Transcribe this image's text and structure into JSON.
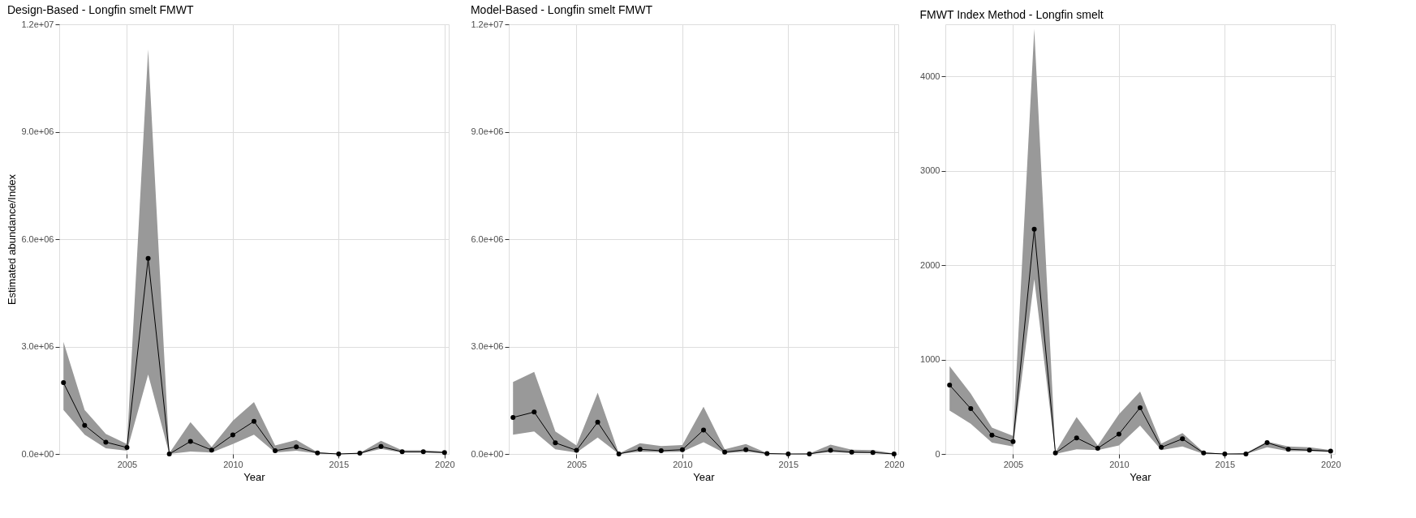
{
  "chart_data": [
    {
      "type": "line",
      "title": "Design-Based - Longfin smelt FMWT",
      "xlabel": "Year",
      "ylabel": "Estimated abundance/Index",
      "x": [
        2002,
        2003,
        2004,
        2005,
        2006,
        2007,
        2008,
        2009,
        2010,
        2011,
        2012,
        2013,
        2014,
        2015,
        2016,
        2017,
        2018,
        2019,
        2020
      ],
      "series": [
        {
          "color": "#000000",
          "values": [
            1990000,
            800000,
            330000,
            180000,
            5460000,
            0,
            350000,
            110000,
            530000,
            910000,
            90000,
            200000,
            30000,
            0,
            20000,
            210000,
            60000,
            60000,
            40000
          ],
          "lower": [
            1230000,
            540000,
            160000,
            90000,
            2220000,
            0,
            70000,
            40000,
            280000,
            540000,
            40000,
            90000,
            10000,
            0,
            0,
            140000,
            40000,
            40000,
            20000
          ],
          "upper": [
            3130000,
            1230000,
            560000,
            280000,
            11300000,
            20000,
            890000,
            200000,
            930000,
            1450000,
            240000,
            390000,
            50000,
            0,
            30000,
            370000,
            100000,
            100000,
            70000
          ]
        }
      ],
      "xlim": [
        2001.8,
        2020.2
      ],
      "xticks": [
        2005,
        2010,
        2015,
        2020
      ],
      "ylim": [
        0,
        12000000
      ],
      "yticks": [
        {
          "value": 0,
          "label": "0.0e+00"
        },
        {
          "value": 3000000,
          "label": "3.0e+06"
        },
        {
          "value": 6000000,
          "label": "6.0e+06"
        },
        {
          "value": 9000000,
          "label": "9.0e+06"
        },
        {
          "value": 12000000,
          "label": "1.2e+07"
        }
      ],
      "grid": true,
      "marker": "circle",
      "line_style": "solid"
    },
    {
      "type": "line",
      "title": "Model-Based - Longfin smelt FMWT",
      "xlabel": "Year",
      "x": [
        2002,
        2003,
        2004,
        2005,
        2006,
        2007,
        2008,
        2009,
        2010,
        2011,
        2012,
        2013,
        2014,
        2015,
        2016,
        2017,
        2018,
        2019,
        2020
      ],
      "series": [
        {
          "color": "#000000",
          "values": [
            1020000,
            1170000,
            310000,
            100000,
            890000,
            0,
            130000,
            90000,
            120000,
            670000,
            50000,
            120000,
            10000,
            0,
            0,
            100000,
            50000,
            40000,
            0
          ],
          "lower": [
            540000,
            630000,
            130000,
            40000,
            460000,
            0,
            60000,
            50000,
            60000,
            330000,
            20000,
            60000,
            0,
            0,
            0,
            50000,
            20000,
            20000,
            0
          ],
          "upper": [
            2010000,
            2290000,
            630000,
            240000,
            1710000,
            10000,
            300000,
            220000,
            250000,
            1320000,
            130000,
            280000,
            20000,
            0,
            10000,
            260000,
            120000,
            110000,
            10000
          ]
        }
      ],
      "xlim": [
        2001.8,
        2020.2
      ],
      "xticks": [
        2005,
        2010,
        2015,
        2020
      ],
      "ylim": [
        0,
        12000000
      ],
      "yticks": [
        {
          "value": 0,
          "label": "0.0e+00"
        },
        {
          "value": 3000000,
          "label": "3.0e+06"
        },
        {
          "value": 6000000,
          "label": "6.0e+06"
        },
        {
          "value": 9000000,
          "label": "9.0e+06"
        },
        {
          "value": 12000000,
          "label": "1.2e+07"
        }
      ],
      "grid": true,
      "marker": "circle",
      "line_style": "solid"
    },
    {
      "type": "line",
      "title": "FMWT Index Method - Longfin smelt",
      "xlabel": "Year",
      "x": [
        2002,
        2003,
        2004,
        2005,
        2006,
        2007,
        2008,
        2009,
        2010,
        2011,
        2012,
        2013,
        2014,
        2015,
        2016,
        2017,
        2018,
        2019,
        2020
      ],
      "series": [
        {
          "color": "#000000",
          "values": [
            730,
            480,
            200,
            130,
            2380,
            10,
            170,
            60,
            210,
            490,
            70,
            160,
            10,
            0,
            0,
            120,
            50,
            40,
            30
          ],
          "lower": [
            460,
            320,
            120,
            80,
            1850,
            0,
            50,
            40,
            90,
            300,
            40,
            80,
            0,
            0,
            0,
            70,
            30,
            30,
            20
          ],
          "upper": [
            930,
            640,
            280,
            190,
            4500,
            20,
            390,
            90,
            420,
            660,
            110,
            220,
            20,
            0,
            10,
            130,
            80,
            70,
            40
          ]
        }
      ],
      "xlim": [
        2001.8,
        2020.2
      ],
      "xticks": [
        2005,
        2010,
        2015,
        2020
      ],
      "ylim": [
        0,
        4550
      ],
      "yticks": [
        0,
        1000,
        2000,
        3000,
        4000
      ],
      "grid": true,
      "marker": "circle",
      "line_style": "solid"
    }
  ]
}
